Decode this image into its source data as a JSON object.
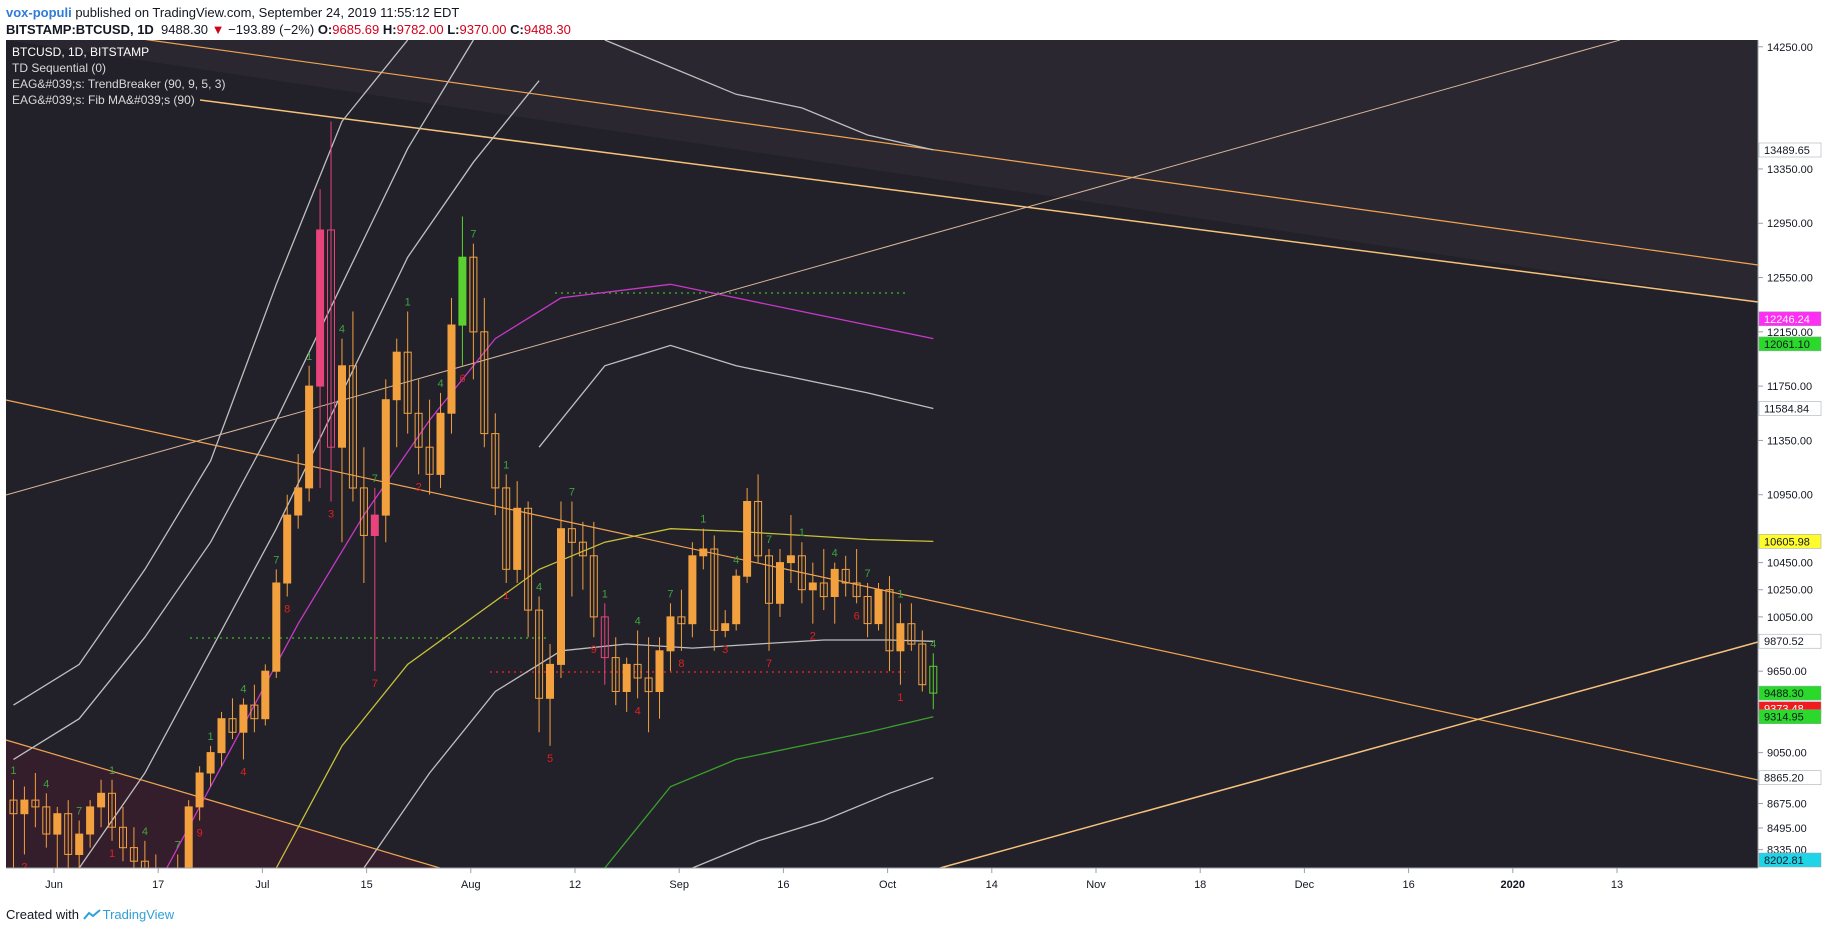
{
  "header": {
    "author": "vox-populi",
    "published_text": " published on TradingView.com, September 24, 2019 11:55:12 EDT",
    "symbol": "BITSTAMP:BTCUSD, 1D",
    "last": "9488.30",
    "change": "−193.89 (−2%)",
    "o_label": "O:",
    "o_value": "9685.69",
    "h_label": "H:",
    "h_value": "9782.00",
    "l_label": "L:",
    "l_value": "9370.00",
    "c_label": "C:",
    "c_value": "9488.30"
  },
  "legend": [
    "BTCUSD, 1D, BITSTAMP",
    "TD Sequential (0)",
    "EAG&#039;s: TrendBreaker (90, 9, 5, 3)",
    "EAG&#039;s: Fib MA&#039;s (90)"
  ],
  "footer": {
    "created_with": "Created with",
    "brand": "TradingView"
  },
  "colors": {
    "background": "#222129",
    "up_candle": "#f3a13f",
    "down_candle": "#f3a13f",
    "pink_candle": "#e8437a",
    "green_candle": "#5ad130",
    "magenta_ma": "#c838c8",
    "yellow_ma": "#c9c23a",
    "green_ma": "#3aa02b",
    "white_band": "#bfbfbf",
    "trendline": "#f0a452",
    "td_green": "#3fa43f",
    "td_red": "#e02020"
  },
  "chart_data": {
    "type": "candlestick",
    "symbol": "BTCUSD",
    "timeframe": "1D",
    "exchange": "BITSTAMP",
    "ylim": [
      8200,
      14300
    ],
    "x_tick_labels": [
      "Jun",
      "17",
      "Jul",
      "15",
      "Aug",
      "12",
      "Sep",
      "16",
      "Oct",
      "14",
      "Nov",
      "18",
      "Dec",
      "16",
      "2020",
      "13"
    ],
    "y_tick_labels": [
      "14250.00",
      "13350.00",
      "12950.00",
      "12550.00",
      "12150.00",
      "11750.00",
      "11350.00",
      "10950.00",
      "10450.00",
      "10250.00",
      "10050.00",
      "9650.00",
      "9050.00",
      "8675.00",
      "8495.00",
      "8335.00"
    ],
    "price_tags": [
      {
        "value": "13489.65",
        "price": 13489.65,
        "bg": "#ffffff",
        "fg": "#131722"
      },
      {
        "value": "12246.24",
        "price": 12246.24,
        "bg": "#ff2ef5",
        "fg": "#ffffff"
      },
      {
        "value": "12061.10",
        "price": 12061.1,
        "bg": "#2bd92b",
        "fg": "#131722"
      },
      {
        "value": "11584.84",
        "price": 11584.84,
        "bg": "#ffffff",
        "fg": "#131722"
      },
      {
        "value": "10605.98",
        "price": 10605.98,
        "bg": "#fffc2e",
        "fg": "#131722"
      },
      {
        "value": "9870.52",
        "price": 9870.52,
        "bg": "#ffffff",
        "fg": "#131722"
      },
      {
        "value": "9488.30",
        "price": 9488.3,
        "bg": "#2bd92b",
        "fg": "#131722"
      },
      {
        "value": "9373.48",
        "price": 9373.48,
        "bg": "#ee1c1c",
        "fg": "#ffffff"
      },
      {
        "value": "9314.95",
        "price": 9314.95,
        "bg": "#2bd92b",
        "fg": "#131722"
      },
      {
        "value": "8865.20",
        "price": 8865.2,
        "bg": "#ffffff",
        "fg": "#131722"
      },
      {
        "value": "8202.81",
        "price": 8202.81,
        "bg": "#20d4e8",
        "fg": "#131722"
      }
    ],
    "candles": [
      {
        "o": 8700,
        "h": 8850,
        "l": 8200,
        "c": 8600
      },
      {
        "o": 8600,
        "h": 8800,
        "l": 8300,
        "c": 8700
      },
      {
        "o": 8700,
        "h": 8900,
        "l": 8500,
        "c": 8650
      },
      {
        "o": 8650,
        "h": 8750,
        "l": 8350,
        "c": 8450
      },
      {
        "o": 8450,
        "h": 8650,
        "l": 8200,
        "c": 8600
      },
      {
        "o": 8600,
        "h": 8700,
        "l": 8200,
        "c": 8300
      },
      {
        "o": 8300,
        "h": 8550,
        "l": 8200,
        "c": 8450
      },
      {
        "o": 8450,
        "h": 8700,
        "l": 8350,
        "c": 8650
      },
      {
        "o": 8650,
        "h": 8850,
        "l": 8500,
        "c": 8750
      },
      {
        "o": 8750,
        "h": 8850,
        "l": 8400,
        "c": 8500
      },
      {
        "o": 8500,
        "h": 8650,
        "l": 8250,
        "c": 8350
      },
      {
        "o": 8350,
        "h": 8500,
        "l": 8100,
        "c": 8250
      },
      {
        "o": 8250,
        "h": 8400,
        "l": 8000,
        "c": 8200
      },
      {
        "o": 8200,
        "h": 8300,
        "l": 7900,
        "c": 8000
      },
      {
        "o": 8000,
        "h": 8200,
        "l": 7800,
        "c": 8100
      },
      {
        "o": 8100,
        "h": 8300,
        "l": 7900,
        "c": 8200
      },
      {
        "o": 8200,
        "h": 8700,
        "l": 8150,
        "c": 8650
      },
      {
        "o": 8650,
        "h": 8950,
        "l": 8550,
        "c": 8900
      },
      {
        "o": 8900,
        "h": 9100,
        "l": 8800,
        "c": 9050
      },
      {
        "o": 9050,
        "h": 9350,
        "l": 8950,
        "c": 9300
      },
      {
        "o": 9300,
        "h": 9450,
        "l": 9150,
        "c": 9200
      },
      {
        "o": 9200,
        "h": 9450,
        "l": 9000,
        "c": 9400
      },
      {
        "o": 9400,
        "h": 9550,
        "l": 9200,
        "c": 9300
      },
      {
        "o": 9300,
        "h": 9700,
        "l": 9250,
        "c": 9650
      },
      {
        "o": 9650,
        "h": 10400,
        "l": 9600,
        "c": 10300
      },
      {
        "o": 10300,
        "h": 10950,
        "l": 10200,
        "c": 10800
      },
      {
        "o": 10800,
        "h": 11250,
        "l": 10700,
        "c": 11000
      },
      {
        "o": 11000,
        "h": 11900,
        "l": 10900,
        "c": 11750
      },
      {
        "o": 11750,
        "h": 13200,
        "l": 11000,
        "c": 12900
      },
      {
        "o": 12900,
        "h": 13700,
        "l": 10900,
        "c": 11300
      },
      {
        "o": 11300,
        "h": 12100,
        "l": 10600,
        "c": 11900
      },
      {
        "o": 11900,
        "h": 12300,
        "l": 10900,
        "c": 11000
      },
      {
        "o": 11000,
        "h": 11300,
        "l": 10300,
        "c": 10650
      },
      {
        "o": 10650,
        "h": 11000,
        "l": 9650,
        "c": 10800
      },
      {
        "o": 10800,
        "h": 11800,
        "l": 10600,
        "c": 11650
      },
      {
        "o": 11650,
        "h": 12100,
        "l": 11300,
        "c": 12000
      },
      {
        "o": 12000,
        "h": 12300,
        "l": 11400,
        "c": 11550
      },
      {
        "o": 11550,
        "h": 11800,
        "l": 11100,
        "c": 11300
      },
      {
        "o": 11300,
        "h": 11650,
        "l": 10950,
        "c": 11100
      },
      {
        "o": 11100,
        "h": 11700,
        "l": 11000,
        "c": 11550
      },
      {
        "o": 11550,
        "h": 12400,
        "l": 11400,
        "c": 12200
      },
      {
        "o": 12200,
        "h": 13000,
        "l": 11900,
        "c": 12700
      },
      {
        "o": 12700,
        "h": 12800,
        "l": 11800,
        "c": 12150
      },
      {
        "o": 12150,
        "h": 12400,
        "l": 11300,
        "c": 11400
      },
      {
        "o": 11400,
        "h": 11550,
        "l": 10800,
        "c": 11000
      },
      {
        "o": 11000,
        "h": 11100,
        "l": 10300,
        "c": 10400
      },
      {
        "o": 10400,
        "h": 11050,
        "l": 10300,
        "c": 10850
      },
      {
        "o": 10850,
        "h": 10900,
        "l": 9900,
        "c": 10100
      },
      {
        "o": 10100,
        "h": 10200,
        "l": 9200,
        "c": 9450
      },
      {
        "o": 9450,
        "h": 9850,
        "l": 9100,
        "c": 9700
      },
      {
        "o": 9700,
        "h": 10900,
        "l": 9600,
        "c": 10700
      },
      {
        "o": 10700,
        "h": 10900,
        "l": 10200,
        "c": 10600
      },
      {
        "o": 10600,
        "h": 10750,
        "l": 10250,
        "c": 10500
      },
      {
        "o": 10500,
        "h": 10750,
        "l": 9900,
        "c": 10050
      },
      {
        "o": 10050,
        "h": 10150,
        "l": 9550,
        "c": 9750
      },
      {
        "o": 9750,
        "h": 9900,
        "l": 9400,
        "c": 9500
      },
      {
        "o": 9500,
        "h": 9750,
        "l": 9350,
        "c": 9700
      },
      {
        "o": 9700,
        "h": 9950,
        "l": 9450,
        "c": 9600
      },
      {
        "o": 9600,
        "h": 9900,
        "l": 9200,
        "c": 9500
      },
      {
        "o": 9500,
        "h": 9900,
        "l": 9300,
        "c": 9800
      },
      {
        "o": 9800,
        "h": 10150,
        "l": 9650,
        "c": 10050
      },
      {
        "o": 10050,
        "h": 10250,
        "l": 9800,
        "c": 10000
      },
      {
        "o": 10000,
        "h": 10600,
        "l": 9900,
        "c": 10500
      },
      {
        "o": 10500,
        "h": 10700,
        "l": 10400,
        "c": 10550
      },
      {
        "o": 10550,
        "h": 10650,
        "l": 9800,
        "c": 9950
      },
      {
        "o": 9950,
        "h": 10100,
        "l": 9900,
        "c": 10000
      },
      {
        "o": 10000,
        "h": 10400,
        "l": 9950,
        "c": 10350
      },
      {
        "o": 10350,
        "h": 11000,
        "l": 10300,
        "c": 10900
      },
      {
        "o": 10900,
        "h": 11100,
        "l": 10450,
        "c": 10500
      },
      {
        "o": 10500,
        "h": 10550,
        "l": 9800,
        "c": 10150
      },
      {
        "o": 10150,
        "h": 10550,
        "l": 10050,
        "c": 10450
      },
      {
        "o": 10450,
        "h": 10800,
        "l": 10300,
        "c": 10500
      },
      {
        "o": 10500,
        "h": 10600,
        "l": 10150,
        "c": 10250
      },
      {
        "o": 10250,
        "h": 10450,
        "l": 10000,
        "c": 10300
      },
      {
        "o": 10300,
        "h": 10550,
        "l": 10100,
        "c": 10200
      },
      {
        "o": 10200,
        "h": 10450,
        "l": 10000,
        "c": 10400
      },
      {
        "o": 10400,
        "h": 10500,
        "l": 10200,
        "c": 10300
      },
      {
        "o": 10300,
        "h": 10550,
        "l": 10150,
        "c": 10200
      },
      {
        "o": 10200,
        "h": 10300,
        "l": 9900,
        "c": 10000
      },
      {
        "o": 10000,
        "h": 10300,
        "l": 9950,
        "c": 10250
      },
      {
        "o": 10250,
        "h": 10350,
        "l": 9650,
        "c": 9800
      },
      {
        "o": 9800,
        "h": 10150,
        "l": 9550,
        "c": 10000
      },
      {
        "o": 10000,
        "h": 10150,
        "l": 9800,
        "c": 9850
      },
      {
        "o": 9850,
        "h": 9950,
        "l": 9500,
        "c": 9550
      },
      {
        "o": 9685.69,
        "h": 9782.0,
        "l": 9370.0,
        "c": 9488.3
      }
    ],
    "series": [
      {
        "name": "",
        "color": "#bfbfbf",
        "points": [
          [
            0,
            9400
          ],
          [
            6,
            9700
          ],
          [
            12,
            10400
          ],
          [
            18,
            11200
          ],
          [
            24,
            12500
          ],
          [
            30,
            13700
          ],
          [
            36,
            14300
          ]
        ]
      },
      {
        "name": "",
        "color": "#bfbfbf",
        "points": [
          [
            0,
            9000
          ],
          [
            6,
            9300
          ],
          [
            12,
            9900
          ],
          [
            18,
            10600
          ],
          [
            24,
            11500
          ],
          [
            30,
            12500
          ],
          [
            36,
            13500
          ],
          [
            42,
            14300
          ]
        ]
      },
      {
        "name": "",
        "color": "#bfbfbf",
        "points": [
          [
            6,
            8200
          ],
          [
            12,
            8900
          ],
          [
            18,
            9800
          ],
          [
            24,
            10700
          ],
          [
            30,
            11700
          ],
          [
            36,
            12700
          ],
          [
            42,
            13400
          ],
          [
            48,
            14000
          ]
        ]
      },
      {
        "name": "",
        "color": "#c838c8",
        "points": [
          [
            14,
            8200
          ],
          [
            20,
            9100
          ],
          [
            26,
            10000
          ],
          [
            32,
            10800
          ],
          [
            38,
            11500
          ],
          [
            44,
            12100
          ],
          [
            50,
            12400
          ],
          [
            60,
            12500
          ],
          [
            66,
            12400
          ],
          [
            72,
            12300
          ],
          [
            78,
            12200
          ],
          [
            84,
            12100
          ]
        ]
      },
      {
        "name": "",
        "color": "#c9c23a",
        "points": [
          [
            24,
            8200
          ],
          [
            30,
            9100
          ],
          [
            36,
            9700
          ],
          [
            42,
            10050
          ],
          [
            48,
            10400
          ],
          [
            54,
            10600
          ],
          [
            60,
            10700
          ],
          [
            66,
            10680
          ],
          [
            72,
            10650
          ],
          [
            78,
            10620
          ],
          [
            84,
            10606
          ]
        ]
      },
      {
        "name": "",
        "color": "#bfbfbf",
        "points": [
          [
            32,
            8200
          ],
          [
            38,
            8900
          ],
          [
            44,
            9500
          ],
          [
            50,
            9800
          ],
          [
            56,
            9850
          ],
          [
            62,
            9820
          ],
          [
            68,
            9850
          ],
          [
            74,
            9880
          ],
          [
            80,
            9880
          ],
          [
            84,
            9870
          ]
        ]
      },
      {
        "name": "",
        "color": "#3aa02b",
        "points": [
          [
            54,
            8200
          ],
          [
            60,
            8800
          ],
          [
            66,
            9000
          ],
          [
            72,
            9100
          ],
          [
            78,
            9200
          ],
          [
            84,
            9315
          ]
        ]
      },
      {
        "name": "",
        "color": "#bfbfbf",
        "points": [
          [
            62,
            8200
          ],
          [
            68,
            8400
          ],
          [
            74,
            8550
          ],
          [
            80,
            8750
          ],
          [
            84,
            8865
          ]
        ]
      },
      {
        "name": "",
        "color": "#bfbfbf",
        "points": [
          [
            54,
            14300
          ],
          [
            60,
            14100
          ],
          [
            66,
            13900
          ],
          [
            72,
            13800
          ],
          [
            78,
            13600
          ],
          [
            84,
            13490
          ]
        ]
      },
      {
        "name": "",
        "color": "#bfbfbf",
        "points": [
          [
            48,
            11300
          ],
          [
            54,
            11900
          ],
          [
            60,
            12050
          ],
          [
            66,
            11900
          ],
          [
            72,
            11800
          ],
          [
            78,
            11700
          ],
          [
            84,
            11585
          ]
        ]
      }
    ]
  }
}
